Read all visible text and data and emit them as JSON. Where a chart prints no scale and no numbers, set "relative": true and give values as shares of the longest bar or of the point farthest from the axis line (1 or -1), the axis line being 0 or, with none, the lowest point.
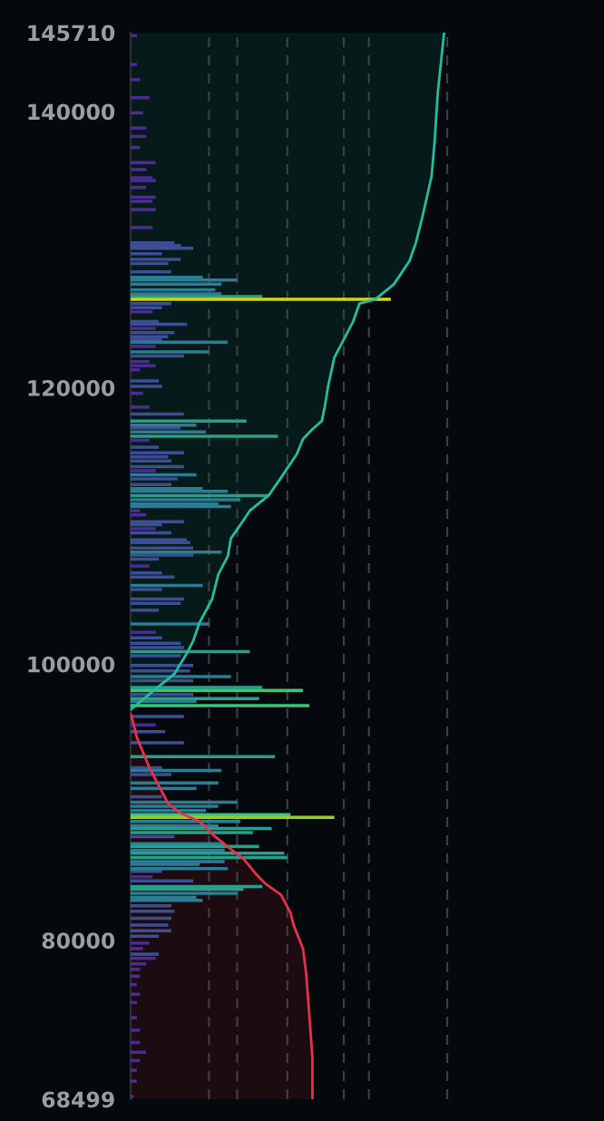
{
  "chart_data": {
    "type": "bar",
    "orientation": "horizontal",
    "relative": true,
    "grid": false,
    "legend": false,
    "ylim": [
      68499,
      145710
    ],
    "yticks": [
      68499,
      80000,
      100000,
      120000,
      140000,
      145710
    ],
    "ref_lines": [
      {
        "axis": "x",
        "value": 0.25,
        "color": "#3a3f45",
        "line_style": "dashed"
      },
      {
        "axis": "x",
        "value": 0.34,
        "color": "#3a3f45",
        "line_style": "dashed"
      },
      {
        "axis": "x",
        "value": 0.5,
        "color": "#3a3f45",
        "line_style": "dashed"
      },
      {
        "axis": "x",
        "value": 0.68,
        "color": "#3a3f45",
        "line_style": "dashed"
      },
      {
        "axis": "x",
        "value": 0.76,
        "color": "#3a3f45",
        "line_style": "dashed"
      },
      {
        "axis": "x",
        "value": 1.01,
        "color": "#3a3f45",
        "line_style": "dashed"
      }
    ],
    "series": [
      {
        "type": "area",
        "color": "#1fbfa0",
        "x": [
          96700,
          98200,
          99300,
          100800,
          101700,
          103000,
          104700,
          106500,
          107800,
          109100,
          110400,
          111100,
          112200,
          113500,
          115200,
          116300,
          117000,
          117600,
          118700,
          120100,
          122200,
          123500,
          124800,
          126100,
          126400,
          127500,
          129200,
          130500,
          132300,
          135300,
          137900,
          141400,
          145700
        ],
        "values": [
          0,
          0.08,
          0.14,
          0.18,
          0.2,
          0.22,
          0.26,
          0.28,
          0.31,
          0.32,
          0.36,
          0.38,
          0.44,
          0.48,
          0.53,
          0.55,
          0.58,
          0.61,
          0.62,
          0.63,
          0.65,
          0.68,
          0.71,
          0.73,
          0.78,
          0.84,
          0.89,
          0.91,
          0.93,
          0.96,
          0.97,
          0.98,
          1
        ]
      },
      {
        "type": "area",
        "color": "#e8304a",
        "x": [
          96400,
          95600,
          94700,
          93600,
          92500,
          91200,
          89900,
          89200,
          88600,
          87700,
          86600,
          85900,
          84800,
          84100,
          83300,
          82000,
          81100,
          79400,
          77600,
          74600,
          71500,
          68500
        ],
        "values": [
          0,
          0.01,
          0.02,
          0.04,
          0.06,
          0.09,
          0.12,
          0.16,
          0.22,
          0.26,
          0.32,
          0.36,
          0.4,
          0.43,
          0.48,
          0.51,
          0.52,
          0.55,
          0.56,
          0.57,
          0.58,
          0.58
        ]
      },
      {
        "color": "#4b2d8f",
        "x": [
          145500,
          143400,
          142300,
          141000,
          139900,
          138800,
          138200,
          137400,
          136300,
          135800,
          135200,
          135000,
          134500,
          133800,
          133500,
          132900,
          131600,
          125500,
          124300,
          123000,
          121900,
          121600,
          121300,
          119600,
          118600,
          116200,
          114000,
          111100,
          110800,
          109800,
          107100,
          102300,
          95600,
          84600,
          79800,
          79400,
          78700,
          78300,
          77900,
          77400,
          76800,
          76100,
          75500,
          74400,
          73500,
          72600,
          71900,
          71300,
          70600,
          69800,
          68700
        ],
        "values": [
          0.02,
          0.02,
          0.03,
          0.06,
          0.04,
          0.05,
          0.05,
          0.03,
          0.08,
          0.05,
          0.07,
          0.08,
          0.05,
          0.08,
          0.07,
          0.08,
          0.07,
          0.07,
          0.08,
          0.08,
          0.06,
          0.08,
          0.03,
          0.04,
          0.06,
          0.06,
          0.08,
          0.03,
          0.05,
          0.08,
          0.06,
          0.08,
          0.08,
          0.07,
          0.06,
          0.04,
          0.08,
          0.05,
          0.03,
          0.03,
          0.02,
          0.03,
          0.02,
          0.02,
          0.03,
          0.03,
          0.05,
          0.03,
          0.02,
          0.02,
          0.01
        ]
      },
      {
        "color": "#3d4f94",
        "x": [
          130500,
          130300,
          130100,
          129700,
          129300,
          129000,
          128400,
          126100,
          125800,
          124800,
          124600,
          124000,
          123700,
          123500,
          122300,
          120500,
          120100,
          118100,
          117100,
          115700,
          115300,
          115000,
          114700,
          114300,
          113400,
          113000,
          110300,
          110100,
          109500,
          109000,
          108800,
          108400,
          107900,
          107600,
          106600,
          106300,
          105400,
          104700,
          104400,
          103900,
          101900,
          101500,
          101200,
          100600,
          99900,
          99500,
          98800,
          97800,
          96200,
          95100,
          94300,
          92500,
          92000,
          90400,
          87500,
          85000,
          84300,
          82500,
          82100,
          81600,
          81100,
          80700,
          80300,
          79000
        ],
        "values": [
          0.14,
          0.16,
          0.2,
          0.1,
          0.16,
          0.12,
          0.13,
          0.13,
          0.1,
          0.09,
          0.18,
          0.14,
          0.12,
          0.1,
          0.17,
          0.09,
          0.1,
          0.17,
          0.16,
          0.09,
          0.17,
          0.12,
          0.13,
          0.17,
          0.15,
          0.13,
          0.17,
          0.1,
          0.13,
          0.18,
          0.19,
          0.2,
          0.2,
          0.09,
          0.1,
          0.14,
          0.1,
          0.17,
          0.16,
          0.09,
          0.1,
          0.16,
          0.17,
          0.16,
          0.2,
          0.19,
          0.2,
          0.2,
          0.17,
          0.11,
          0.17,
          0.1,
          0.13,
          0.1,
          0.14,
          0.1,
          0.2,
          0.13,
          0.14,
          0.13,
          0.12,
          0.13,
          0.09,
          0.09
        ]
      },
      {
        "color": "#2a7d92",
        "x": [
          128000,
          127800,
          127500,
          127100,
          126800,
          123300,
          122600,
          117300,
          116800,
          113700,
          112700,
          112500,
          111900,
          111600,
          111400,
          108100,
          105700,
          102900,
          99100,
          97300,
          92300,
          91400,
          91000,
          90000,
          89700,
          89400,
          88600,
          88300,
          87000,
          86500,
          85700,
          85500,
          85200,
          83400,
          83100,
          82900
        ],
        "values": [
          0.23,
          0.34,
          0.29,
          0.27,
          0.29,
          0.31,
          0.25,
          0.21,
          0.24,
          0.21,
          0.23,
          0.31,
          0.35,
          0.28,
          0.32,
          0.29,
          0.23,
          0.25,
          0.32,
          0.21,
          0.29,
          0.28,
          0.21,
          0.34,
          0.28,
          0.24,
          0.35,
          0.28,
          0.3,
          0.3,
          0.3,
          0.22,
          0.31,
          0.34,
          0.21,
          0.23
        ]
      },
      {
        "color": "#26a08a",
        "x": [
          126600,
          117600,
          116500,
          112200,
          100900,
          98300,
          97500,
          93300,
          88100,
          87800,
          86800,
          86300,
          86000,
          83900,
          83700
        ],
        "values": [
          0.42,
          0.37,
          0.47,
          0.44,
          0.38,
          0.42,
          0.41,
          0.46,
          0.45,
          0.39,
          0.41,
          0.49,
          0.5,
          0.42,
          0.36
        ]
      },
      {
        "color": "#3cc47a",
        "x": [
          98100,
          97000,
          89100
        ],
        "values": [
          0.55,
          0.57,
          0.51
        ]
      },
      {
        "color": "#9ac832",
        "x": [
          88900
        ],
        "values": [
          0.65
        ]
      },
      {
        "color": "#d4d414",
        "x": [
          126400
        ],
        "values": [
          0.83
        ]
      }
    ]
  }
}
